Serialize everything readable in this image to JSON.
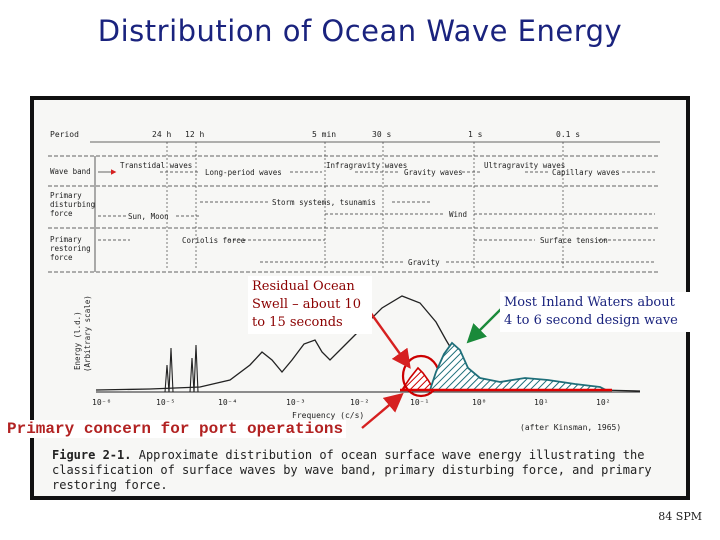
{
  "title": "Distribution of Ocean Wave Energy",
  "period": {
    "label": "Period",
    "ticks": [
      "24 h",
      "12 h",
      "5 min",
      "30 s",
      "1 s",
      "0.1 s"
    ]
  },
  "rows": {
    "wave_band": {
      "label_lines": [
        "Wave band"
      ],
      "segments": [
        "Transtidal waves",
        "Long-period waves",
        "Infragravity waves",
        "Gravity waves",
        "Ultragravity waves",
        "Capillary waves"
      ]
    },
    "disturbing": {
      "label_lines": [
        "Primary",
        "disturbing",
        "force"
      ],
      "segments": [
        "Sun, Moon",
        "Storm systems, tsunamis",
        "Wind"
      ]
    },
    "restoring": {
      "label_lines": [
        "Primary",
        "restoring",
        "force"
      ],
      "segments": [
        "Coriolis force",
        "Surface tension",
        "Gravity"
      ]
    }
  },
  "energy_axis": {
    "label_lines": [
      "Energy (l.d.)",
      "(Arbitrary scale)"
    ]
  },
  "frequency_axis": {
    "ticks": [
      "10⁻⁶",
      "10⁻⁵",
      "10⁻⁴",
      "10⁻³",
      "10⁻²",
      "10⁻¹",
      "10⁰",
      "10¹",
      "10²"
    ],
    "label": "Frequency (c/s)",
    "attribution": "(after Kinsman, 1965)"
  },
  "callouts": {
    "residual_swell": "Residual Ocean Swell – about 10 to 15 seconds",
    "inland_waters": "Most Inland Waters about 4 to 6 second design wave",
    "primary_concern": "Primary concern for port operations"
  },
  "caption": {
    "figure": "Figure 2-1.",
    "text": "Approximate distribution of ocean surface wave energy illustrating the classification of surface waves by wave band, primary disturbing force, and primary restoring force."
  },
  "slide_id": "84 SPM",
  "colors": {
    "title": "#1a237e",
    "swell_highlight": "#cc0000",
    "inland_highlight": "#1f6f7a",
    "arrow_red": "#d62020",
    "arrow_green": "#1a8a3a"
  }
}
